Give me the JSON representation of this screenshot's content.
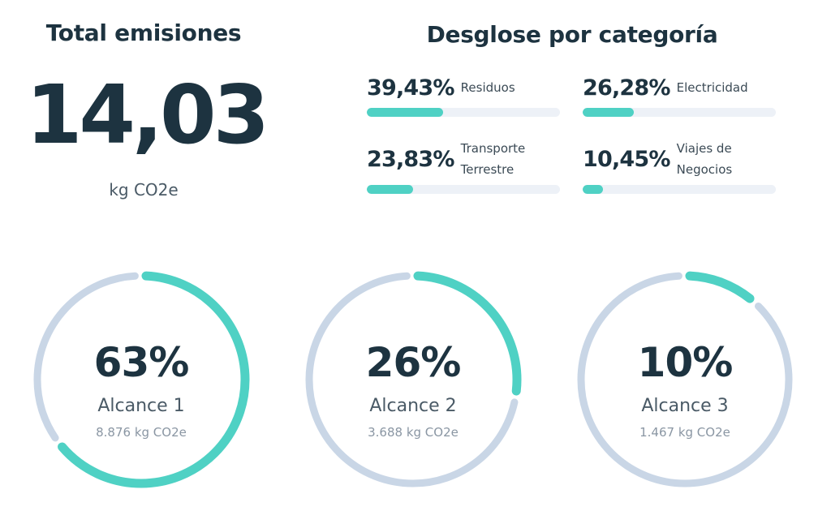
{
  "total": {
    "title": "Total emisiones",
    "value": "14,03",
    "unit": "kg CO2e"
  },
  "breakdown": {
    "title": "Desglose por categoría",
    "categories": [
      {
        "percent_text": "39,43%",
        "label_lines": [
          "Residuos"
        ],
        "fraction": 0.3943
      },
      {
        "percent_text": "26,28%",
        "label_lines": [
          "Electricidad"
        ],
        "fraction": 0.2628
      },
      {
        "percent_text": "23,83%",
        "label_lines": [
          "Transporte",
          "Terrestre"
        ],
        "fraction": 0.2383
      },
      {
        "percent_text": "10,45%",
        "label_lines": [
          "Viajes de",
          "Negocios"
        ],
        "fraction": 0.1045
      }
    ]
  },
  "scopes": [
    {
      "percent_text": "63%",
      "name": "Alcance 1",
      "amount": "8.876 kg CO2e",
      "fraction": 0.63
    },
    {
      "percent_text": "26%",
      "name": "Alcance 2",
      "amount": "3.688 kg CO2e",
      "fraction": 0.26
    },
    {
      "percent_text": "10%",
      "name": "Alcance 3",
      "amount": "1.467 kg CO2e",
      "fraction": 0.1
    }
  ],
  "colors": {
    "accent": "#4fd1c4",
    "track": "#c9d6e6",
    "bar_track": "#edf1f7",
    "text_dark": "#1d3340"
  }
}
